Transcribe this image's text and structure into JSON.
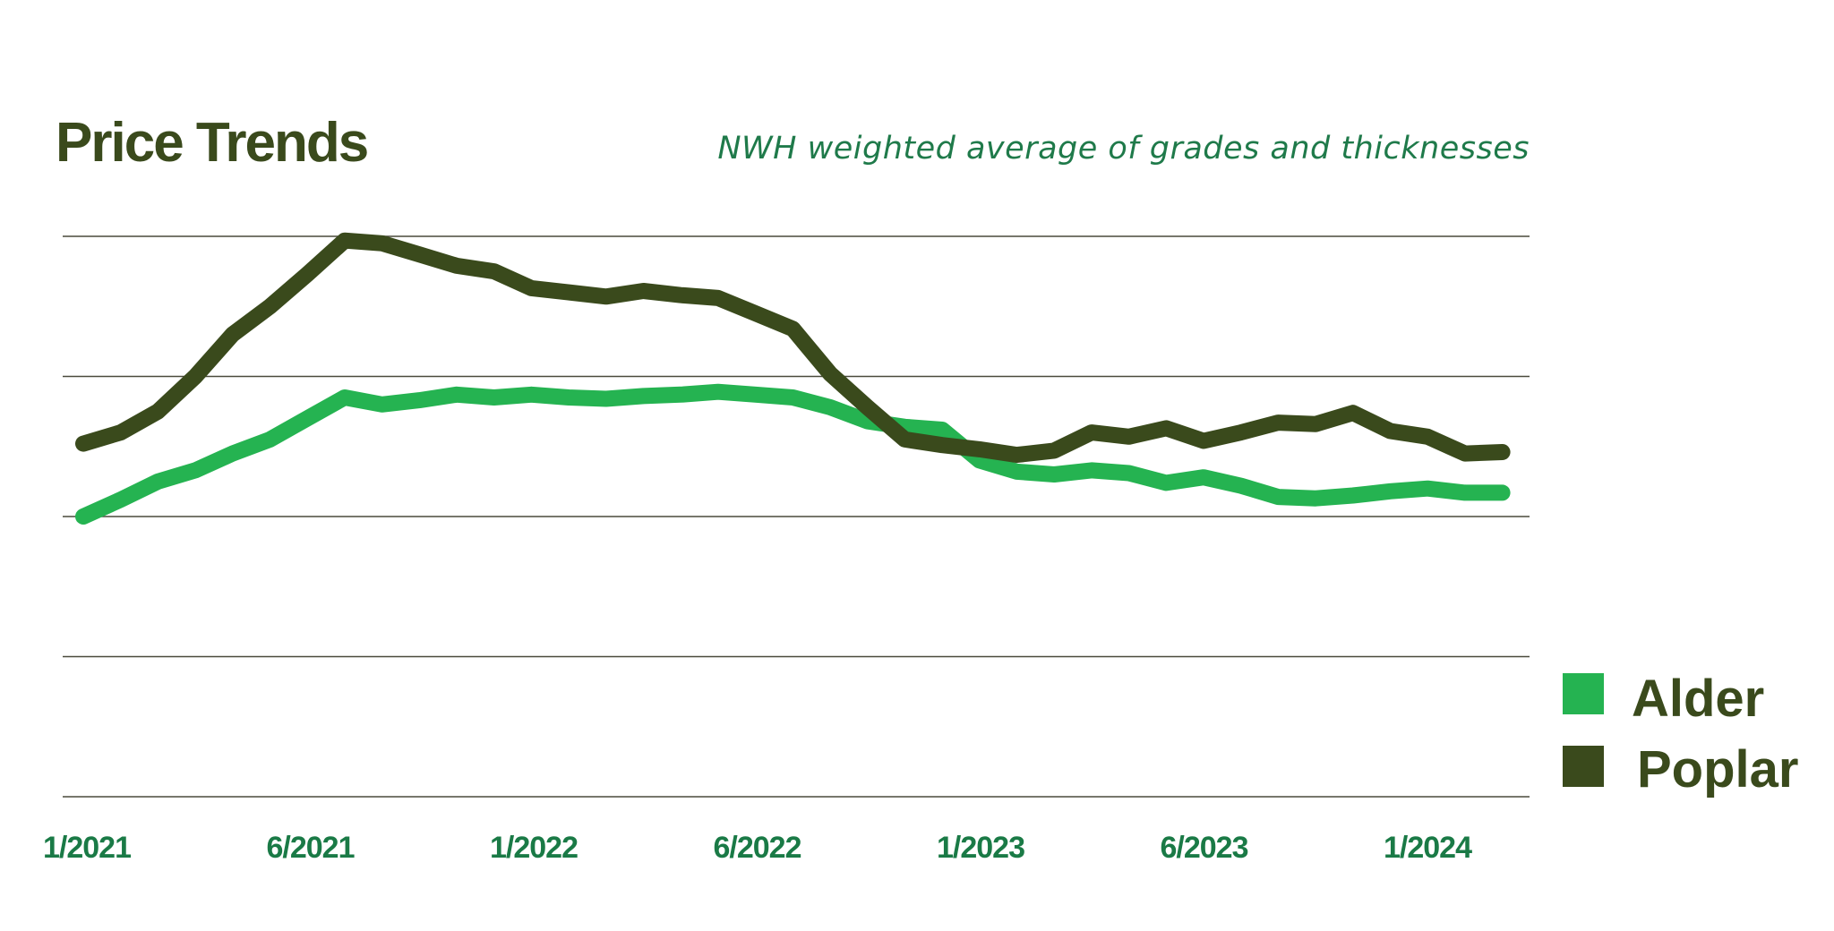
{
  "colors": {
    "alder": "#25b351",
    "poplar": "#3a4a1c",
    "title": "#3a4a1c",
    "subtitle": "#1f7a4a",
    "tick": "#1a7a46",
    "grid": "#4a4a3c"
  },
  "chart_data": {
    "type": "line",
    "title": "Price Trends",
    "subtitle": "NWH weighted average of grades and thicknesses",
    "x_tick_labels": [
      "1/2021",
      "6/2021",
      "1/2022",
      "6/2022",
      "1/2023",
      "6/2023",
      "1/2024"
    ],
    "y_tick_labels": [],
    "grid": true,
    "gridlines": 5,
    "legend_position": "bottom-right",
    "series": [
      {
        "name": "Alder",
        "color": "#25b351",
        "values": [
          0.0,
          0.12,
          0.25,
          0.33,
          0.45,
          0.55,
          0.7,
          0.85,
          0.8,
          0.83,
          0.87,
          0.85,
          0.87,
          0.85,
          0.84,
          0.86,
          0.87,
          0.89,
          0.87,
          0.85,
          0.78,
          0.68,
          0.64,
          0.62,
          0.4,
          0.32,
          0.3,
          0.33,
          0.31,
          0.24,
          0.28,
          0.22,
          0.14,
          0.13,
          0.15,
          0.18,
          0.2,
          0.17,
          0.17
        ]
      },
      {
        "name": "Poplar",
        "color": "#3a4a1c",
        "values": [
          0.52,
          0.6,
          0.75,
          1.0,
          1.3,
          1.5,
          1.73,
          1.97,
          1.95,
          1.87,
          1.79,
          1.75,
          1.63,
          1.6,
          1.57,
          1.61,
          1.58,
          1.56,
          1.45,
          1.34,
          1.02,
          0.78,
          0.55,
          0.51,
          0.48,
          0.44,
          0.47,
          0.6,
          0.57,
          0.63,
          0.54,
          0.6,
          0.67,
          0.66,
          0.74,
          0.61,
          0.57,
          0.45,
          0.46
        ]
      }
    ],
    "ylim": [
      -1.0,
      2.0
    ]
  }
}
